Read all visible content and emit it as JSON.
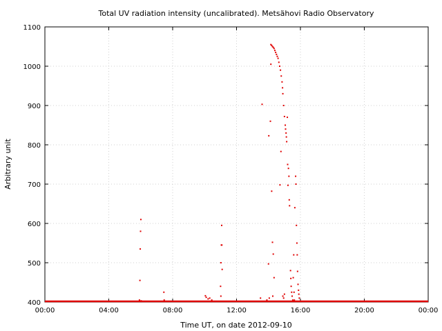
{
  "chart_data": {
    "type": "scatter",
    "title": "Total UV radiation intensity (uncalibrated). Metsähovi Radio Observatory",
    "xlabel": "Time UT, on date 2012-09-10",
    "ylabel": "Arbitrary unit",
    "x_unit": "hours UT",
    "xlim": [
      0,
      24
    ],
    "ylim": [
      400,
      1100
    ],
    "x_ticks": [
      0,
      4,
      8,
      12,
      16,
      20,
      24
    ],
    "x_tick_labels": [
      "00:00",
      "04:00",
      "08:00",
      "12:00",
      "16:00",
      "20:00",
      "00:00"
    ],
    "y_ticks": [
      400,
      500,
      600,
      700,
      800,
      900,
      1000,
      1100
    ],
    "y_tick_labels": [
      "400",
      "500",
      "600",
      "700",
      "800",
      "900",
      "1000",
      "1100"
    ],
    "grid": true,
    "marker_color": "#e00000",
    "baseline": {
      "value": 400,
      "x_range": [
        0,
        24
      ]
    },
    "series": [
      {
        "values": [
          [
            5.92,
            405
          ],
          [
            5.95,
            455
          ],
          [
            5.97,
            535
          ],
          [
            5.99,
            580
          ],
          [
            6.01,
            610
          ],
          [
            6.03,
            403
          ],
          [
            7.45,
            425
          ],
          [
            7.47,
            405
          ],
          [
            10.05,
            416
          ],
          [
            10.1,
            412
          ],
          [
            10.22,
            408
          ],
          [
            10.32,
            410
          ],
          [
            10.45,
            405
          ],
          [
            11.0,
            440
          ],
          [
            11.02,
            500
          ],
          [
            11.05,
            545
          ],
          [
            11.07,
            595
          ],
          [
            11.08,
            545
          ],
          [
            11.1,
            483
          ],
          [
            11.02,
            415
          ],
          [
            13.6,
            903
          ],
          [
            13.5,
            410
          ],
          [
            13.9,
            405
          ],
          [
            14.02,
            823
          ],
          [
            14.0,
            497
          ],
          [
            14.05,
            410
          ],
          [
            14.12,
            860
          ],
          [
            14.15,
            1005
          ],
          [
            14.2,
            682
          ],
          [
            14.25,
            552
          ],
          [
            14.3,
            522
          ],
          [
            14.35,
            462
          ],
          [
            14.27,
            415
          ],
          [
            14.15,
            1055
          ],
          [
            14.2,
            1053
          ],
          [
            14.25,
            1050
          ],
          [
            14.3,
            1048
          ],
          [
            14.35,
            1045
          ],
          [
            14.4,
            1040
          ],
          [
            14.45,
            1035
          ],
          [
            14.5,
            1030
          ],
          [
            14.55,
            1025
          ],
          [
            14.6,
            1020
          ],
          [
            14.65,
            1010
          ],
          [
            14.7,
            1000
          ],
          [
            14.75,
            990
          ],
          [
            14.8,
            975
          ],
          [
            14.85,
            960
          ],
          [
            14.88,
            945
          ],
          [
            14.9,
            930
          ],
          [
            14.72,
            698
          ],
          [
            14.78,
            783
          ],
          [
            14.95,
            900
          ],
          [
            15.0,
            872
          ],
          [
            15.05,
            850
          ],
          [
            15.07,
            840
          ],
          [
            15.1,
            830
          ],
          [
            15.12,
            820
          ],
          [
            15.14,
            808
          ],
          [
            15.18,
            870
          ],
          [
            15.2,
            750
          ],
          [
            15.25,
            740
          ],
          [
            15.28,
            720
          ],
          [
            15.22,
            697
          ],
          [
            15.3,
            660
          ],
          [
            15.32,
            645
          ],
          [
            15.38,
            480
          ],
          [
            15.4,
            460
          ],
          [
            15.42,
            440
          ],
          [
            15.45,
            425
          ],
          [
            15.48,
            415
          ],
          [
            15.52,
            405
          ],
          [
            15.55,
            462
          ],
          [
            15.6,
            425
          ],
          [
            15.65,
            640
          ],
          [
            15.7,
            720
          ],
          [
            15.72,
            700
          ],
          [
            15.75,
            595
          ],
          [
            15.78,
            550
          ],
          [
            15.8,
            520
          ],
          [
            15.82,
            478
          ],
          [
            15.85,
            445
          ],
          [
            15.88,
            430
          ],
          [
            15.9,
            420
          ],
          [
            15.93,
            410
          ],
          [
            14.9,
            415
          ],
          [
            14.95,
            410
          ],
          [
            15.0,
            420
          ],
          [
            15.58,
            520
          ],
          [
            15.62,
            405
          ]
        ]
      }
    ]
  }
}
